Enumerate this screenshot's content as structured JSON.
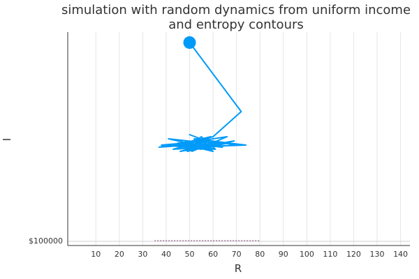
{
  "chart_data": {
    "type": "line",
    "title_line1": "simulation with random dynamics from uniform income",
    "title_line2": "and entropy contours",
    "xlabel": "R",
    "ylabel": "I",
    "xlim": [
      -2,
      144
    ],
    "ylim": [
      -0.02,
      1.0
    ],
    "grid": "vertical",
    "legend": "none",
    "x_ticks": [
      10,
      20,
      30,
      40,
      50,
      60,
      70,
      80,
      90,
      100,
      110,
      120,
      130,
      140
    ],
    "y_tick_label": "$100000",
    "y_tick_value": 0,
    "series": [
      {
        "color": "#009af9",
        "start_marker": {
          "x": 50,
          "y": 0.95
        },
        "x": [
          50,
          72,
          60,
          45,
          56,
          37,
          63,
          48,
          58,
          42,
          66,
          51,
          57,
          41,
          61,
          46,
          54,
          69,
          49,
          59,
          44,
          55,
          62,
          47,
          53,
          70,
          43,
          57,
          50,
          64,
          45,
          60,
          52,
          74,
          48,
          58,
          38,
          61,
          55,
          49,
          67,
          46,
          56,
          51
        ],
        "y": [
          0.95,
          0.62,
          0.5,
          0.46,
          0.49,
          0.45,
          0.47,
          0.48,
          0.44,
          0.46,
          0.5,
          0.43,
          0.47,
          0.49,
          0.44,
          0.47,
          0.45,
          0.48,
          0.43,
          0.5,
          0.46,
          0.44,
          0.47,
          0.45,
          0.49,
          0.46,
          0.44,
          0.48,
          0.51,
          0.45,
          0.47,
          0.43,
          0.49,
          0.46,
          0.45,
          0.48,
          0.46,
          0.44,
          0.5,
          0.45,
          0.47,
          0.43,
          0.46,
          0.48
        ]
      }
    ],
    "contour_color": "#6b1a66",
    "contour_x": [
      35,
      80
    ]
  }
}
